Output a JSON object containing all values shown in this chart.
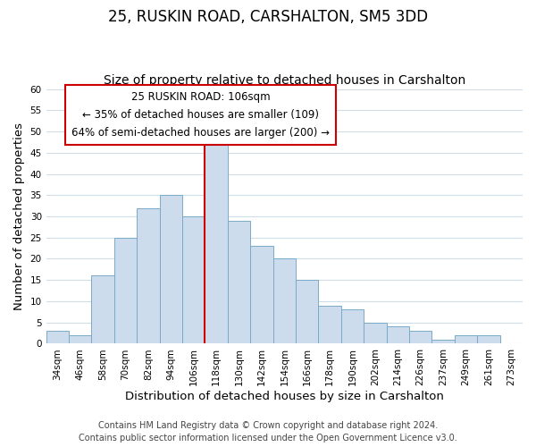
{
  "title": "25, RUSKIN ROAD, CARSHALTON, SM5 3DD",
  "subtitle": "Size of property relative to detached houses in Carshalton",
  "xlabel": "Distribution of detached houses by size in Carshalton",
  "ylabel": "Number of detached properties",
  "bar_labels": [
    "34sqm",
    "46sqm",
    "58sqm",
    "70sqm",
    "82sqm",
    "94sqm",
    "106sqm",
    "118sqm",
    "130sqm",
    "142sqm",
    "154sqm",
    "166sqm",
    "178sqm",
    "190sqm",
    "202sqm",
    "214sqm",
    "226sqm",
    "237sqm",
    "249sqm",
    "261sqm",
    "273sqm"
  ],
  "bar_values": [
    3,
    2,
    16,
    25,
    32,
    35,
    30,
    49,
    29,
    23,
    20,
    15,
    9,
    8,
    5,
    4,
    3,
    1,
    2,
    2,
    0
  ],
  "bar_color": "#ccdcec",
  "bar_edge_color": "#7aaac8",
  "highlight_bar_index": 6,
  "highlight_line_color": "#cc0000",
  "ylim": [
    0,
    60
  ],
  "yticks": [
    0,
    5,
    10,
    15,
    20,
    25,
    30,
    35,
    40,
    45,
    50,
    55,
    60
  ],
  "annotation_title": "25 RUSKIN ROAD: 106sqm",
  "annotation_line1": "← 35% of detached houses are smaller (109)",
  "annotation_line2": "64% of semi-detached houses are larger (200) →",
  "annotation_box_color": "#ffffff",
  "annotation_box_edge": "#cc0000",
  "footer_line1": "Contains HM Land Registry data © Crown copyright and database right 2024.",
  "footer_line2": "Contains public sector information licensed under the Open Government Licence v3.0.",
  "background_color": "#ffffff",
  "grid_color": "#d0dce8",
  "title_fontsize": 12,
  "subtitle_fontsize": 10,
  "axis_label_fontsize": 9.5,
  "tick_fontsize": 7.5,
  "annotation_fontsize": 8.5,
  "footer_fontsize": 7
}
